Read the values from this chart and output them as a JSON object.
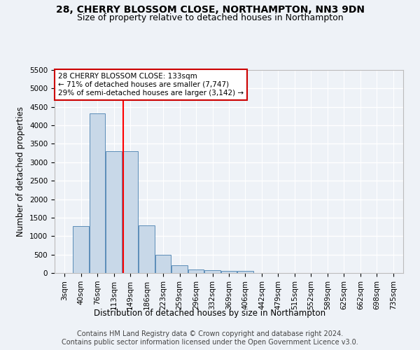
{
  "title": "28, CHERRY BLOSSOM CLOSE, NORTHAMPTON, NN3 9DN",
  "subtitle": "Size of property relative to detached houses in Northampton",
  "xlabel": "Distribution of detached houses by size in Northampton",
  "ylabel": "Number of detached properties",
  "categories": [
    "3sqm",
    "40sqm",
    "76sqm",
    "113sqm",
    "149sqm",
    "186sqm",
    "223sqm",
    "259sqm",
    "296sqm",
    "332sqm",
    "369sqm",
    "406sqm",
    "442sqm",
    "479sqm",
    "515sqm",
    "552sqm",
    "589sqm",
    "625sqm",
    "662sqm",
    "698sqm",
    "735sqm"
  ],
  "values": [
    0,
    1270,
    4330,
    3300,
    3300,
    1290,
    490,
    210,
    90,
    70,
    55,
    55,
    0,
    0,
    0,
    0,
    0,
    0,
    0,
    0,
    0
  ],
  "bar_color": "#c8d8e8",
  "bar_edge_color": "#5b8db8",
  "annotation_line1": "28 CHERRY BLOSSOM CLOSE: 133sqm",
  "annotation_line2": "← 71% of detached houses are smaller (7,747)",
  "annotation_line3": "29% of semi-detached houses are larger (3,142) →",
  "annotation_box_color": "#ffffff",
  "annotation_box_edge_color": "#cc0000",
  "ylim": [
    0,
    5500
  ],
  "yticks": [
    0,
    500,
    1000,
    1500,
    2000,
    2500,
    3000,
    3500,
    4000,
    4500,
    5000,
    5500
  ],
  "footnote1": "Contains HM Land Registry data © Crown copyright and database right 2024.",
  "footnote2": "Contains public sector information licensed under the Open Government Licence v3.0.",
  "background_color": "#eef2f7",
  "grid_color": "#ffffff",
  "title_fontsize": 10,
  "subtitle_fontsize": 9,
  "axis_label_fontsize": 8.5,
  "tick_fontsize": 7.5,
  "annotation_fontsize": 7.5,
  "footnote_fontsize": 7
}
